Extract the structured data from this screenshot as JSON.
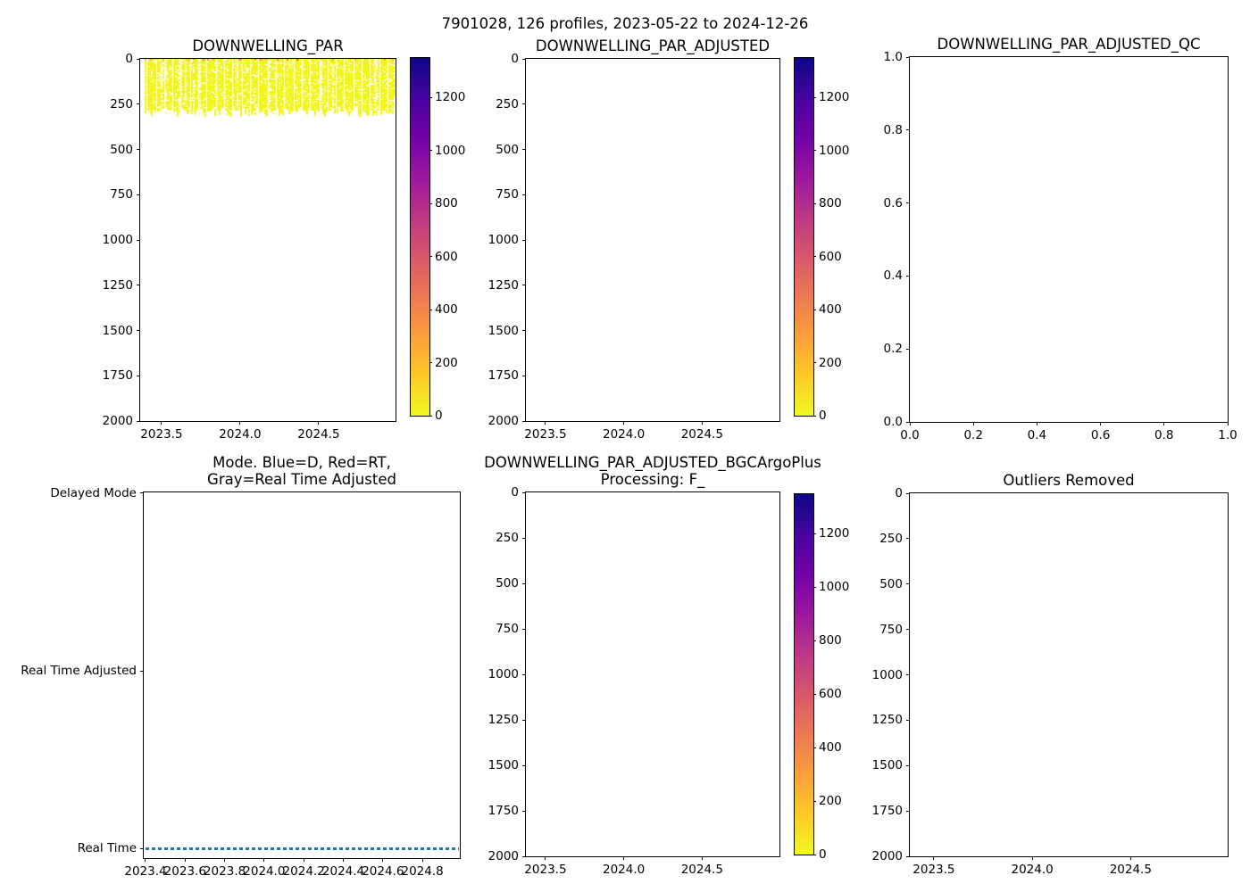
{
  "figure": {
    "suptitle": "7901028, 126 profiles, 2023-05-22 to 2024-12-26",
    "background": "#ffffff"
  },
  "colors": {
    "heatmap_yellow": "#f2f41d",
    "surface_orange_dots": [
      "#fdb52e",
      "#fb9f3a",
      "#ed7953",
      "#e34e26"
    ],
    "mode_line_blue": "#1f77b4",
    "axis_black": "#000000"
  },
  "colorbar_common": {
    "vmin": 0,
    "vmax": 1348,
    "tick_values": [
      0,
      200,
      400,
      600,
      800,
      1000,
      1200
    ],
    "tick_labels": [
      "0",
      "200",
      "400",
      "600",
      "800",
      "1000",
      "1200"
    ],
    "colormap": "plasma_r (yellow at 0, dark navy at max)",
    "gradient_top_to_bottom": [
      "#0d0887",
      "#46039f",
      "#7201a8",
      "#9c179e",
      "#bd3786",
      "#d8576b",
      "#ed7953",
      "#fb9f3a",
      "#fdca26",
      "#f0f921"
    ]
  },
  "chart_data": [
    {
      "id": "downwelling-par",
      "type": "heatmap",
      "title_lines": [
        "DOWNWELLING_PAR"
      ],
      "xlim": [
        2023.364,
        2024.989
      ],
      "ylim_bottom_top": [
        2000,
        0
      ],
      "xticks": [
        2023.5,
        2024.0,
        2024.5
      ],
      "xtick_labels": [
        "2023.5",
        "2024.0",
        "2024.5"
      ],
      "yticks": [
        0,
        250,
        500,
        750,
        1000,
        1250,
        1500,
        1750,
        2000
      ],
      "ytick_labels": [
        "0",
        "250",
        "500",
        "750",
        "1000",
        "1250",
        "1500",
        "1750",
        "2000"
      ],
      "has_colorbar": true,
      "heatmap": {
        "x_data_start": 2023.4,
        "x_data_end": 2024.985,
        "n_profiles": 126,
        "depth_top": 0,
        "depth_bottom_approx": 300,
        "dominant_value_range": "near 0 (yellow)",
        "surface_value_range": "a few hundred (orange dots at ~0 dbar)",
        "note": "Data only from surface to ~300 dbar for all 126 profiles; white speckle gaps throughout; nothing below 300 dbar."
      }
    },
    {
      "id": "downwelling-par-adjusted",
      "type": "heatmap",
      "title_lines": [
        "DOWNWELLING_PAR_ADJUSTED"
      ],
      "xlim": [
        2023.375,
        2024.994
      ],
      "ylim_bottom_top": [
        2000,
        0
      ],
      "xticks": [
        2023.5,
        2024.0,
        2024.5
      ],
      "xtick_labels": [
        "2023.5",
        "2024.0",
        "2024.5"
      ],
      "yticks": [
        0,
        250,
        500,
        750,
        1000,
        1250,
        1500,
        1750,
        2000
      ],
      "ytick_labels": [
        "0",
        "250",
        "500",
        "750",
        "1000",
        "1250",
        "1500",
        "1750",
        "2000"
      ],
      "has_colorbar": true,
      "empty": true
    },
    {
      "id": "downwelling-par-adjusted-qc",
      "type": "scatter",
      "title_lines": [
        "DOWNWELLING_PAR_ADJUSTED_QC"
      ],
      "xlim": [
        0.0,
        1.0
      ],
      "ylim_bottom_top": [
        0.0,
        1.0
      ],
      "xticks": [
        0.0,
        0.2,
        0.4,
        0.6,
        0.8,
        1.0
      ],
      "xtick_labels": [
        "0.0",
        "0.2",
        "0.4",
        "0.6",
        "0.8",
        "1.0"
      ],
      "yticks": [
        0.0,
        0.2,
        0.4,
        0.6,
        0.8,
        1.0
      ],
      "ytick_labels": [
        "0.0",
        "0.2",
        "0.4",
        "0.6",
        "0.8",
        "1.0"
      ],
      "has_colorbar": false,
      "empty": true
    },
    {
      "id": "mode",
      "type": "scatter",
      "title_lines": [
        "Mode. Blue=D, Red=RT,",
        "Gray=Real Time Adjusted"
      ],
      "xlim": [
        2023.391,
        2024.989
      ],
      "ylim_bottom_top": [
        -0.055,
        2.005
      ],
      "xticks": [
        2023.4,
        2023.6,
        2023.8,
        2024.0,
        2024.2,
        2024.4,
        2024.6,
        2024.8
      ],
      "xtick_labels": [
        "2023.4",
        "2023.6",
        "2023.8",
        "2024.0",
        "2024.2",
        "2024.4",
        "2024.6",
        "2024.8"
      ],
      "yticks": [
        2,
        1,
        0
      ],
      "ytick_labels": [
        "Delayed Mode",
        "Real Time Adjusted",
        "Real Time"
      ],
      "has_colorbar": false,
      "series": [
        {
          "name": "mode-markers",
          "y_category": "Real Time",
          "y_value": 0,
          "x_start": 2023.4,
          "x_end": 2024.985,
          "n_points": 126,
          "color": "#1f77b4",
          "marker": "short horizontal dashes forming a dashed line"
        }
      ]
    },
    {
      "id": "downwelling-par-adjusted-bgcargoplus",
      "type": "heatmap",
      "title_lines": [
        "DOWNWELLING_PAR_ADJUSTED_BGCArgoPlus",
        "Processing: F_"
      ],
      "xlim": [
        2023.375,
        2024.994
      ],
      "ylim_bottom_top": [
        2000,
        0
      ],
      "xticks": [
        2023.5,
        2024.0,
        2024.5
      ],
      "xtick_labels": [
        "2023.5",
        "2024.0",
        "2024.5"
      ],
      "yticks": [
        0,
        250,
        500,
        750,
        1000,
        1250,
        1500,
        1750,
        2000
      ],
      "ytick_labels": [
        "0",
        "250",
        "500",
        "750",
        "1000",
        "1250",
        "1500",
        "1750",
        "2000"
      ],
      "has_colorbar": true,
      "empty": true
    },
    {
      "id": "outliers-removed",
      "type": "heatmap",
      "title_lines": [
        "Outliers Removed"
      ],
      "xlim": [
        2023.378,
        2024.993
      ],
      "ylim_bottom_top": [
        2000,
        0
      ],
      "xticks": [
        2023.5,
        2024.0,
        2024.5
      ],
      "xtick_labels": [
        "2023.5",
        "2024.0",
        "2024.5"
      ],
      "yticks": [
        0,
        250,
        500,
        750,
        1000,
        1250,
        1500,
        1750,
        2000
      ],
      "ytick_labels": [
        "0",
        "250",
        "500",
        "750",
        "1000",
        "1250",
        "1500",
        "1750",
        "2000"
      ],
      "has_colorbar": false,
      "empty": true
    }
  ]
}
